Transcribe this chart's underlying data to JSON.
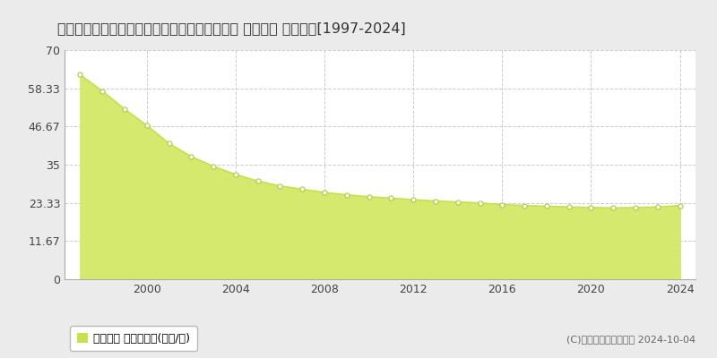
{
  "title": "千葉県鎌ケ谷市西佐津間１丁目１９２番４４外 基準地価 地価推移[1997-2024]",
  "years": [
    1997,
    1998,
    1999,
    2000,
    2001,
    2002,
    2003,
    2004,
    2005,
    2006,
    2007,
    2008,
    2009,
    2010,
    2011,
    2012,
    2013,
    2014,
    2015,
    2016,
    2017,
    2018,
    2019,
    2020,
    2021,
    2022,
    2023,
    2024
  ],
  "values": [
    62.5,
    57.5,
    52.0,
    47.0,
    41.5,
    37.5,
    34.5,
    32.0,
    30.0,
    28.5,
    27.5,
    26.5,
    25.8,
    25.2,
    24.8,
    24.3,
    23.9,
    23.6,
    23.3,
    22.8,
    22.5,
    22.3,
    22.1,
    21.9,
    21.8,
    21.9,
    22.1,
    22.5
  ],
  "ylim": [
    0,
    70
  ],
  "yticks": [
    0,
    11.67,
    23.33,
    35,
    46.67,
    58.33,
    70
  ],
  "ytick_labels": [
    "0",
    "11.67",
    "23.33",
    "35",
    "46.67",
    "58.33",
    "70"
  ],
  "xticks": [
    2000,
    2004,
    2008,
    2012,
    2016,
    2020,
    2024
  ],
  "line_color": "#c8e050",
  "fill_color": "#d4e96e",
  "marker_facecolor": "#ffffff",
  "marker_edgecolor": "#b0c840",
  "bg_color": "#ebebeb",
  "plot_bg_color": "#ffffff",
  "grid_color": "#cccccc",
  "legend_label": "基準地価 平均坪単価(万円/坪)",
  "legend_marker_color": "#c8e050",
  "copyright_text": "(C)土地価格ドットコム 2024-10-04",
  "title_fontsize": 11.5,
  "tick_fontsize": 9,
  "legend_fontsize": 9,
  "copyright_fontsize": 8
}
